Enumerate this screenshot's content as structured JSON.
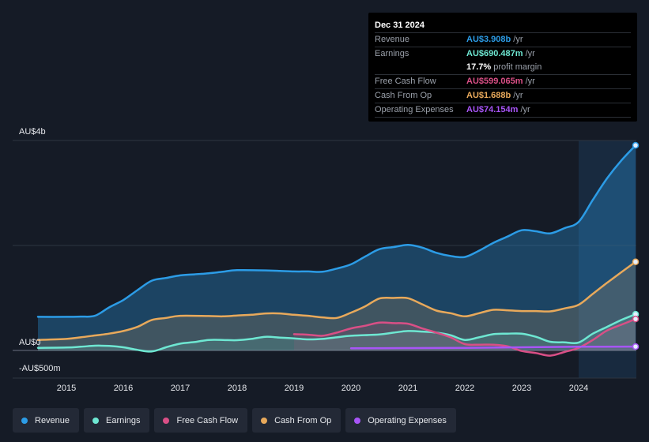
{
  "tooltip": {
    "date": "Dec 31 2024",
    "rows": [
      {
        "label": "Revenue",
        "value": "AU$3.908b",
        "unit": "/yr",
        "color": "#2c9ce6"
      },
      {
        "label": "Earnings",
        "value": "AU$690.487m",
        "unit": "/yr",
        "color": "#6ee7d2"
      },
      {
        "label": "",
        "value": "17.7%",
        "unit": "profit margin",
        "color": "#ffffff"
      },
      {
        "label": "Free Cash Flow",
        "value": "AU$599.065m",
        "unit": "/yr",
        "color": "#d94f86"
      },
      {
        "label": "Cash From Op",
        "value": "AU$1.688b",
        "unit": "/yr",
        "color": "#e8a95b"
      },
      {
        "label": "Operating Expenses",
        "value": "AU$74.154m",
        "unit": "/yr",
        "color": "#a855f7"
      }
    ]
  },
  "legend": {
    "items": [
      {
        "label": "Revenue",
        "color": "#2c9ce6"
      },
      {
        "label": "Earnings",
        "color": "#6ee7d2"
      },
      {
        "label": "Free Cash Flow",
        "color": "#d94f86"
      },
      {
        "label": "Cash From Op",
        "color": "#e8a95b"
      },
      {
        "label": "Operating Expenses",
        "color": "#a855f7"
      }
    ]
  },
  "chart_data": {
    "type": "area",
    "title": "",
    "xlabel": "",
    "ylabel": "",
    "y_tick_labels": [
      "AU$4b",
      "AU$0",
      "-AU$500m"
    ],
    "y_tick_values": [
      4000,
      0,
      -500
    ],
    "ylim": [
      -500,
      4000
    ],
    "xlim": [
      2014.5,
      2025.0
    ],
    "x_ticks": [
      2015,
      2016,
      2017,
      2018,
      2019,
      2020,
      2021,
      2022,
      2023,
      2024
    ],
    "x_tick_labels": [
      "2015",
      "2016",
      "2017",
      "2018",
      "2019",
      "2020",
      "2021",
      "2022",
      "2023",
      "2024"
    ],
    "highlight_start": 2024.0,
    "series": [
      {
        "name": "Revenue",
        "color": "#2c9ce6",
        "points": [
          [
            2014.5,
            640
          ],
          [
            2015.0,
            640
          ],
          [
            2015.25,
            645
          ],
          [
            2015.5,
            660
          ],
          [
            2015.75,
            820
          ],
          [
            2016.0,
            960
          ],
          [
            2016.25,
            1150
          ],
          [
            2016.5,
            1330
          ],
          [
            2016.75,
            1380
          ],
          [
            2017.0,
            1430
          ],
          [
            2017.25,
            1450
          ],
          [
            2017.5,
            1470
          ],
          [
            2017.75,
            1500
          ],
          [
            2018.0,
            1530
          ],
          [
            2018.5,
            1525
          ],
          [
            2018.75,
            1515
          ],
          [
            2019.0,
            1505
          ],
          [
            2019.25,
            1505
          ],
          [
            2019.5,
            1500
          ],
          [
            2019.75,
            1560
          ],
          [
            2020.0,
            1640
          ],
          [
            2020.25,
            1790
          ],
          [
            2020.5,
            1930
          ],
          [
            2020.75,
            1970
          ],
          [
            2021.0,
            2010
          ],
          [
            2021.25,
            1960
          ],
          [
            2021.5,
            1860
          ],
          [
            2021.75,
            1800
          ],
          [
            2022.0,
            1780
          ],
          [
            2022.25,
            1900
          ],
          [
            2022.5,
            2050
          ],
          [
            2022.75,
            2170
          ],
          [
            2023.0,
            2290
          ],
          [
            2023.25,
            2270
          ],
          [
            2023.5,
            2230
          ],
          [
            2023.75,
            2330
          ],
          [
            2024.0,
            2450
          ],
          [
            2024.25,
            2870
          ],
          [
            2024.5,
            3280
          ],
          [
            2024.75,
            3620
          ],
          [
            2025.0,
            3908
          ]
        ]
      },
      {
        "name": "Cash From Op",
        "color": "#e8a95b",
        "points": [
          [
            2014.5,
            200
          ],
          [
            2015.0,
            220
          ],
          [
            2015.25,
            250
          ],
          [
            2015.5,
            285
          ],
          [
            2015.75,
            320
          ],
          [
            2016.0,
            370
          ],
          [
            2016.25,
            450
          ],
          [
            2016.5,
            580
          ],
          [
            2016.75,
            620
          ],
          [
            2017.0,
            660
          ],
          [
            2017.5,
            655
          ],
          [
            2017.75,
            650
          ],
          [
            2018.0,
            665
          ],
          [
            2018.25,
            680
          ],
          [
            2018.5,
            705
          ],
          [
            2018.75,
            705
          ],
          [
            2019.0,
            680
          ],
          [
            2019.25,
            660
          ],
          [
            2019.5,
            630
          ],
          [
            2019.75,
            620
          ],
          [
            2020.0,
            720
          ],
          [
            2020.25,
            840
          ],
          [
            2020.5,
            990
          ],
          [
            2020.75,
            1000
          ],
          [
            2021.0,
            995
          ],
          [
            2021.25,
            880
          ],
          [
            2021.5,
            760
          ],
          [
            2021.75,
            710
          ],
          [
            2022.0,
            650
          ],
          [
            2022.25,
            710
          ],
          [
            2022.5,
            775
          ],
          [
            2022.75,
            765
          ],
          [
            2023.0,
            750
          ],
          [
            2023.25,
            750
          ],
          [
            2023.5,
            745
          ],
          [
            2023.75,
            800
          ],
          [
            2024.0,
            870
          ],
          [
            2024.25,
            1080
          ],
          [
            2024.5,
            1290
          ],
          [
            2024.75,
            1490
          ],
          [
            2025.0,
            1688
          ]
        ]
      },
      {
        "name": "Earnings",
        "color": "#6ee7d2",
        "points": [
          [
            2014.5,
            50
          ],
          [
            2015.0,
            55
          ],
          [
            2015.25,
            70
          ],
          [
            2015.5,
            90
          ],
          [
            2015.75,
            85
          ],
          [
            2016.0,
            60
          ],
          [
            2016.25,
            10
          ],
          [
            2016.5,
            -20
          ],
          [
            2016.75,
            60
          ],
          [
            2017.0,
            130
          ],
          [
            2017.25,
            160
          ],
          [
            2017.5,
            200
          ],
          [
            2017.75,
            200
          ],
          [
            2018.0,
            195
          ],
          [
            2018.25,
            220
          ],
          [
            2018.5,
            260
          ],
          [
            2018.75,
            245
          ],
          [
            2019.0,
            230
          ],
          [
            2019.25,
            210
          ],
          [
            2019.5,
            220
          ],
          [
            2019.75,
            250
          ],
          [
            2020.0,
            280
          ],
          [
            2020.5,
            305
          ],
          [
            2020.75,
            340
          ],
          [
            2021.0,
            370
          ],
          [
            2021.25,
            360
          ],
          [
            2021.5,
            340
          ],
          [
            2021.75,
            290
          ],
          [
            2022.0,
            200
          ],
          [
            2022.25,
            250
          ],
          [
            2022.5,
            310
          ],
          [
            2022.75,
            320
          ],
          [
            2023.0,
            320
          ],
          [
            2023.25,
            260
          ],
          [
            2023.5,
            165
          ],
          [
            2023.75,
            155
          ],
          [
            2024.0,
            150
          ],
          [
            2024.25,
            320
          ],
          [
            2024.5,
            450
          ],
          [
            2024.75,
            580
          ],
          [
            2025.0,
            690
          ]
        ]
      },
      {
        "name": "Free Cash Flow",
        "color": "#d94f86",
        "points": [
          [
            2019.0,
            310
          ],
          [
            2019.25,
            300
          ],
          [
            2019.5,
            280
          ],
          [
            2019.75,
            340
          ],
          [
            2020.0,
            420
          ],
          [
            2020.25,
            470
          ],
          [
            2020.5,
            530
          ],
          [
            2020.75,
            520
          ],
          [
            2021.0,
            510
          ],
          [
            2021.25,
            420
          ],
          [
            2021.5,
            340
          ],
          [
            2021.75,
            250
          ],
          [
            2022.0,
            120
          ],
          [
            2022.25,
            110
          ],
          [
            2022.5,
            110
          ],
          [
            2022.75,
            80
          ],
          [
            2023.0,
            -10
          ],
          [
            2023.25,
            -50
          ],
          [
            2023.5,
            -100
          ],
          [
            2023.75,
            -30
          ],
          [
            2024.0,
            50
          ],
          [
            2024.25,
            200
          ],
          [
            2024.5,
            380
          ],
          [
            2024.75,
            490
          ],
          [
            2025.0,
            599
          ]
        ]
      },
      {
        "name": "Operating Expenses",
        "color": "#a855f7",
        "points": [
          [
            2020.0,
            40
          ],
          [
            2021.0,
            45
          ],
          [
            2022.0,
            50
          ],
          [
            2023.0,
            60
          ],
          [
            2024.0,
            70
          ],
          [
            2025.0,
            74
          ]
        ]
      }
    ]
  }
}
